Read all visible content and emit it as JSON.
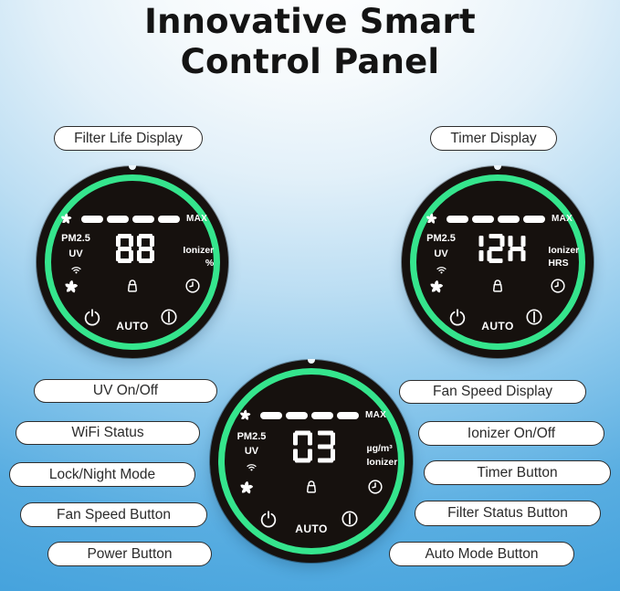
{
  "title": {
    "line1": "Innovative Smart",
    "line2": "Control Panel"
  },
  "colors": {
    "accent_green": "#35e58d",
    "panel_black": "#16110e",
    "background_blue_bottom": "#3f9fdb",
    "background_top": "#ffffff",
    "pill_border": "#2d2d2d"
  },
  "callouts": {
    "top_left": "Filter Life Display",
    "top_right": "Timer Display",
    "left": [
      "UV On/Off",
      "WiFi Status",
      "Lock/Night Mode",
      "Fan Speed Button",
      "Power Button"
    ],
    "right": [
      "Fan Speed Display",
      "Ionizer On/Off",
      "Timer Button",
      "Filter Status Button",
      "Auto Mode Button"
    ]
  },
  "panel_common": {
    "max": "MAX",
    "pm": "PM2.5",
    "uv": "UV",
    "auto": "AUTO",
    "fan_speed_segments": 4
  },
  "panels": {
    "filter": {
      "label": "Filter Life Display",
      "digits": "88",
      "unit_line1": "Ionizer",
      "unit_line2": "%"
    },
    "timer": {
      "label": "Timer Display",
      "digits": "12H",
      "unit_line1": "Ionizer",
      "unit_line2": "HRS"
    },
    "air_quality": {
      "digits": "03",
      "unit_line1": "µg/m³",
      "unit_line2": "Ionizer"
    }
  },
  "icons": [
    "fan-icon",
    "wifi-icon",
    "lock-icon",
    "clock-icon",
    "power-icon",
    "standby-icon"
  ]
}
